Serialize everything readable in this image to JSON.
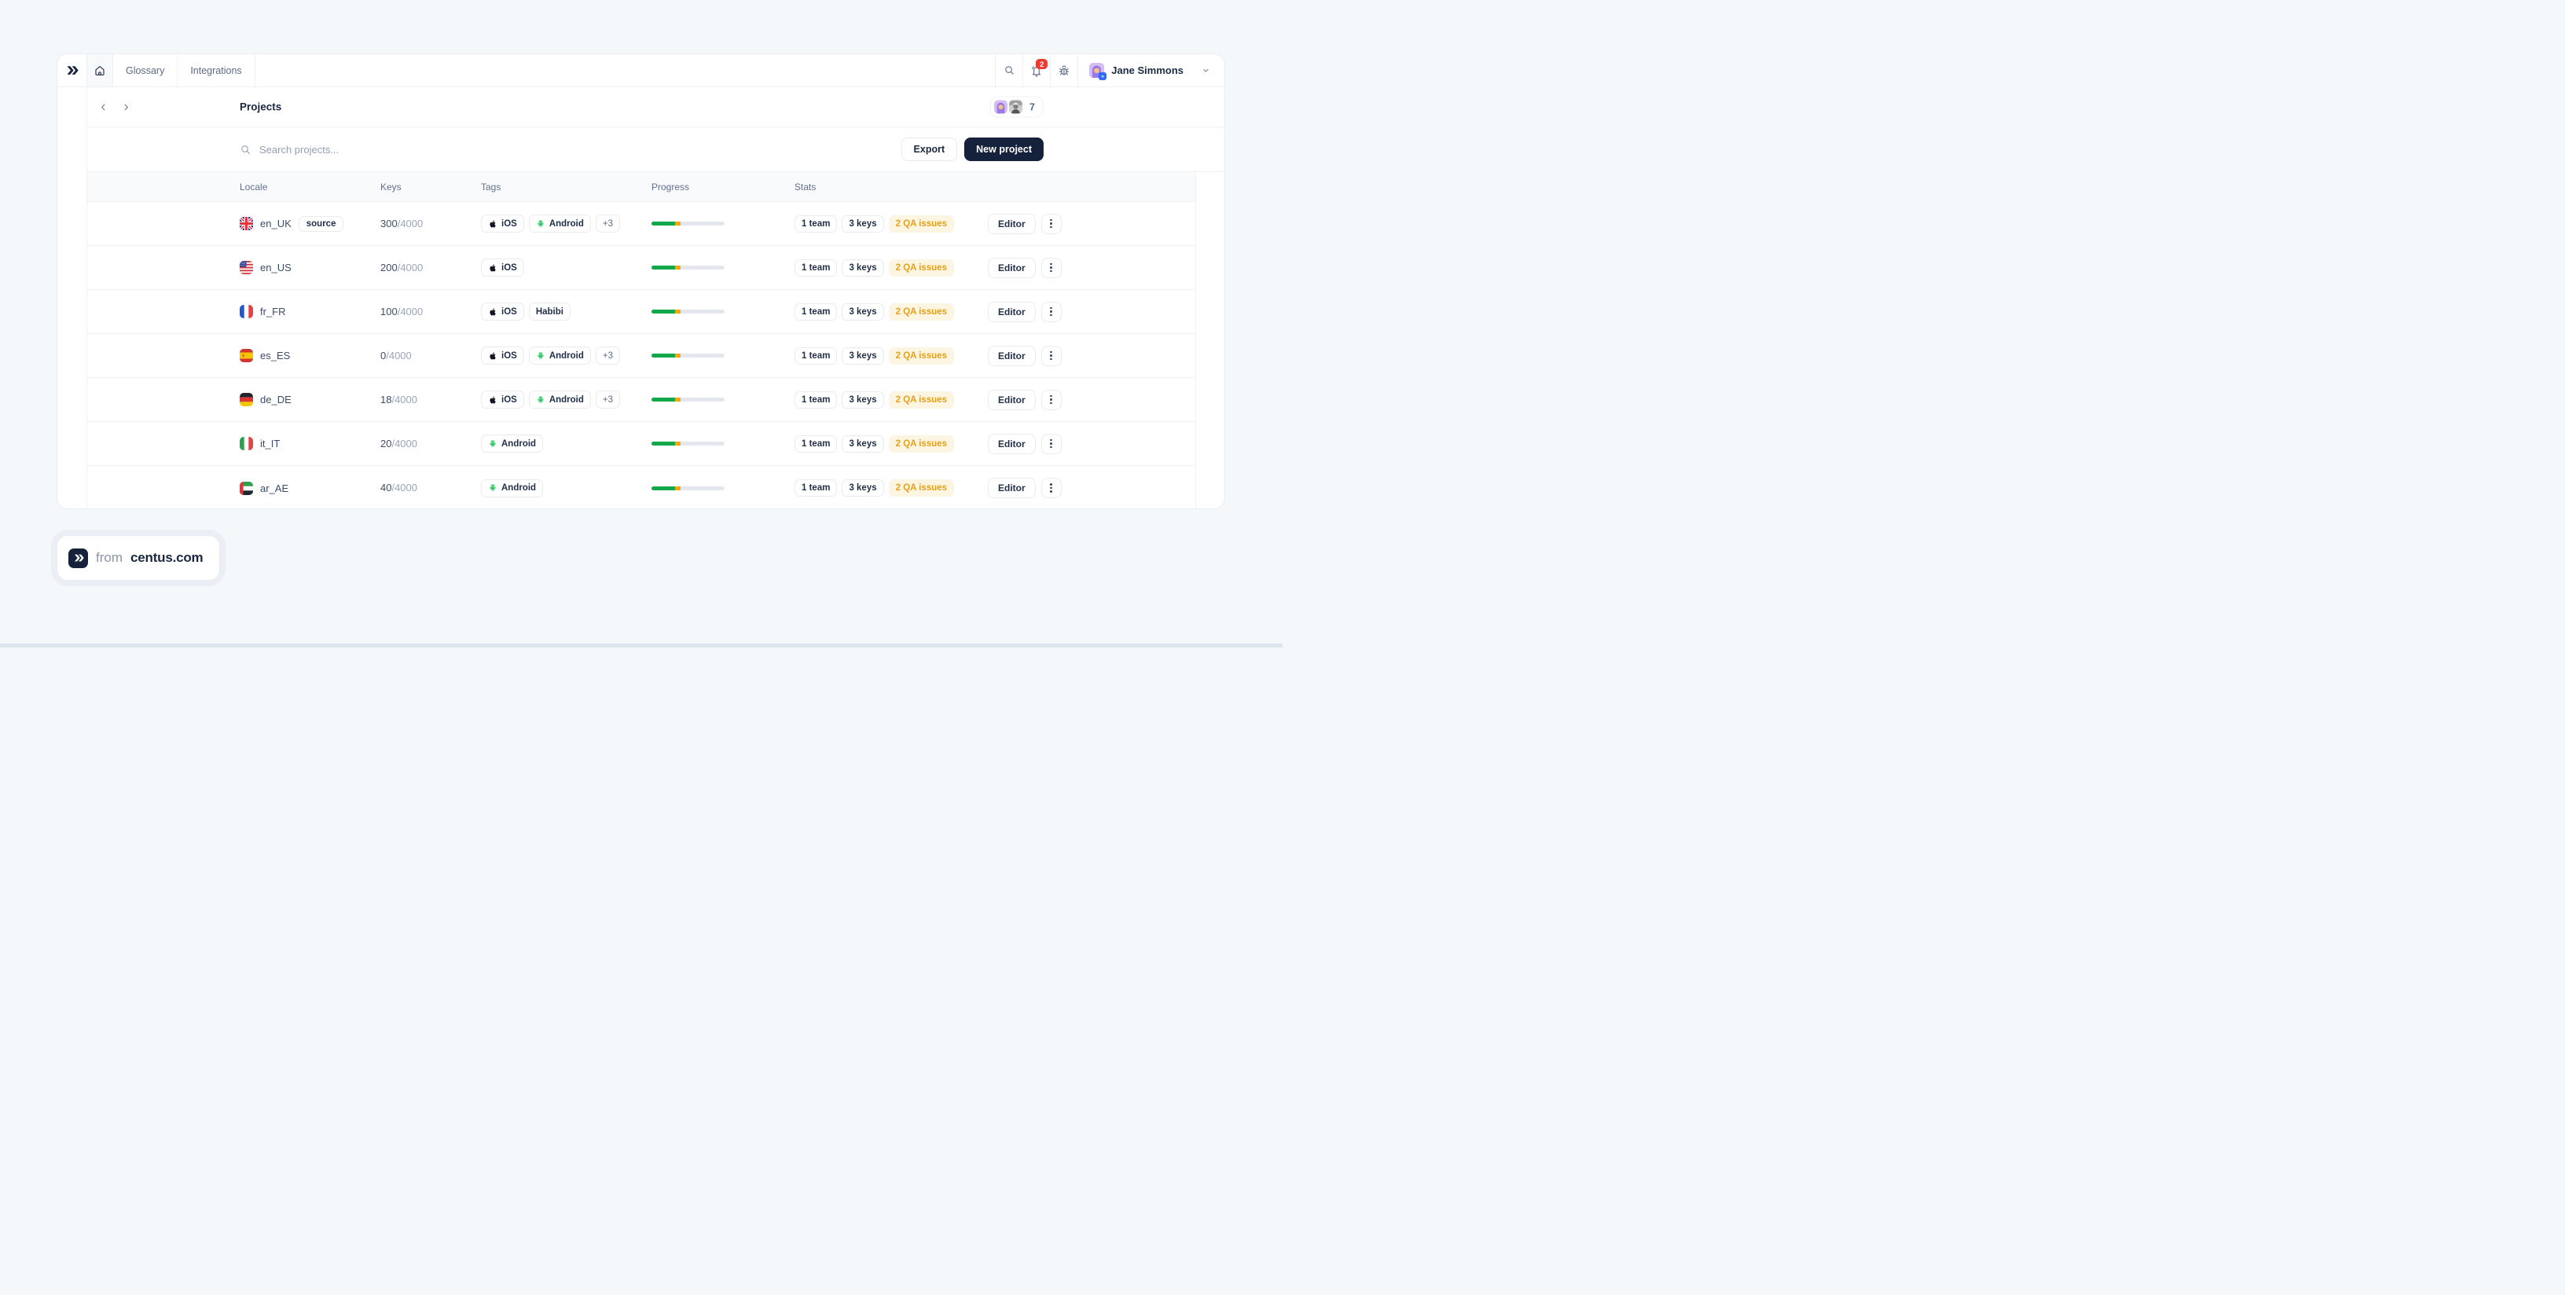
{
  "navbar": {
    "tabs": [
      {
        "label": "Glossary"
      },
      {
        "label": "Integrations"
      }
    ],
    "notification_count": "2",
    "user_name": "Jane Simmons"
  },
  "header": {
    "title": "Projects",
    "member_count": "7"
  },
  "toolbar": {
    "search_placeholder": "Search projects...",
    "export_label": "Export",
    "new_project_label": "New project"
  },
  "table": {
    "columns": [
      "Locale",
      "Keys",
      "Tags",
      "Progress",
      "Stats"
    ],
    "rows": [
      {
        "locale": "en_UK",
        "flag": "gb",
        "badge": "source",
        "keys_done": "300",
        "keys_total": "/4000",
        "tags": [
          {
            "icon": "apple-icon",
            "label": "iOS"
          },
          {
            "icon": "android-icon",
            "label": "Android"
          },
          {
            "icon": null,
            "label": "+3"
          }
        ],
        "progress": {
          "green_pct": 32,
          "orange_pct": 8
        },
        "stats": {
          "team": "1 team",
          "keys": "3 keys",
          "qa": "2 QA issues"
        },
        "action": "Editor"
      },
      {
        "locale": "en_US",
        "flag": "us",
        "badge": null,
        "keys_done": "200",
        "keys_total": "/4000",
        "tags": [
          {
            "icon": "apple-icon",
            "label": "iOS"
          }
        ],
        "progress": {
          "green_pct": 32,
          "orange_pct": 8
        },
        "stats": {
          "team": "1 team",
          "keys": "3 keys",
          "qa": "2 QA issues"
        },
        "action": "Editor"
      },
      {
        "locale": "fr_FR",
        "flag": "fr",
        "badge": null,
        "keys_done": "100",
        "keys_total": "/4000",
        "tags": [
          {
            "icon": "apple-icon",
            "label": "iOS"
          },
          {
            "icon": null,
            "label": "Habibi"
          }
        ],
        "progress": {
          "green_pct": 32,
          "orange_pct": 8
        },
        "stats": {
          "team": "1 team",
          "keys": "3 keys",
          "qa": "2 QA issues"
        },
        "action": "Editor"
      },
      {
        "locale": "es_ES",
        "flag": "es",
        "badge": null,
        "keys_done": "0",
        "keys_total": "/4000",
        "tags": [
          {
            "icon": "apple-icon",
            "label": "iOS"
          },
          {
            "icon": "android-icon",
            "label": "Android"
          },
          {
            "icon": null,
            "label": "+3"
          }
        ],
        "progress": {
          "green_pct": 32,
          "orange_pct": 8
        },
        "stats": {
          "team": "1 team",
          "keys": "3 keys",
          "qa": "2 QA issues"
        },
        "action": "Editor"
      },
      {
        "locale": "de_DE",
        "flag": "de",
        "badge": null,
        "keys_done": "18",
        "keys_total": "/4000",
        "tags": [
          {
            "icon": "apple-icon",
            "label": "iOS"
          },
          {
            "icon": "android-icon",
            "label": "Android"
          },
          {
            "icon": null,
            "label": "+3"
          }
        ],
        "progress": {
          "green_pct": 32,
          "orange_pct": 8
        },
        "stats": {
          "team": "1 team",
          "keys": "3 keys",
          "qa": "2 QA issues"
        },
        "action": "Editor"
      },
      {
        "locale": "it_IT",
        "flag": "it",
        "badge": null,
        "keys_done": "20",
        "keys_total": "/4000",
        "tags": [
          {
            "icon": "android-icon",
            "label": "Android"
          }
        ],
        "progress": {
          "green_pct": 32,
          "orange_pct": 8
        },
        "stats": {
          "team": "1 team",
          "keys": "3 keys",
          "qa": "2 QA issues"
        },
        "action": "Editor"
      },
      {
        "locale": "ar_AE",
        "flag": "ae",
        "badge": null,
        "keys_done": "40",
        "keys_total": "/4000",
        "tags": [
          {
            "icon": "android-icon",
            "label": "Android"
          }
        ],
        "progress": {
          "green_pct": 32,
          "orange_pct": 8
        },
        "stats": {
          "team": "1 team",
          "keys": "3 keys",
          "qa": "2 QA issues"
        },
        "action": "Editor"
      }
    ]
  },
  "footer": {
    "from_label": "from",
    "brand": "centus.com"
  },
  "accents": {
    "navy": "#16213c",
    "progress_green": "#13a84c",
    "progress_orange": "#f7a600",
    "qa_bg": "#fcf5e2",
    "qa_text": "#e8a018",
    "badge_red": "#ee3b33",
    "android_green": "#35c86b"
  }
}
